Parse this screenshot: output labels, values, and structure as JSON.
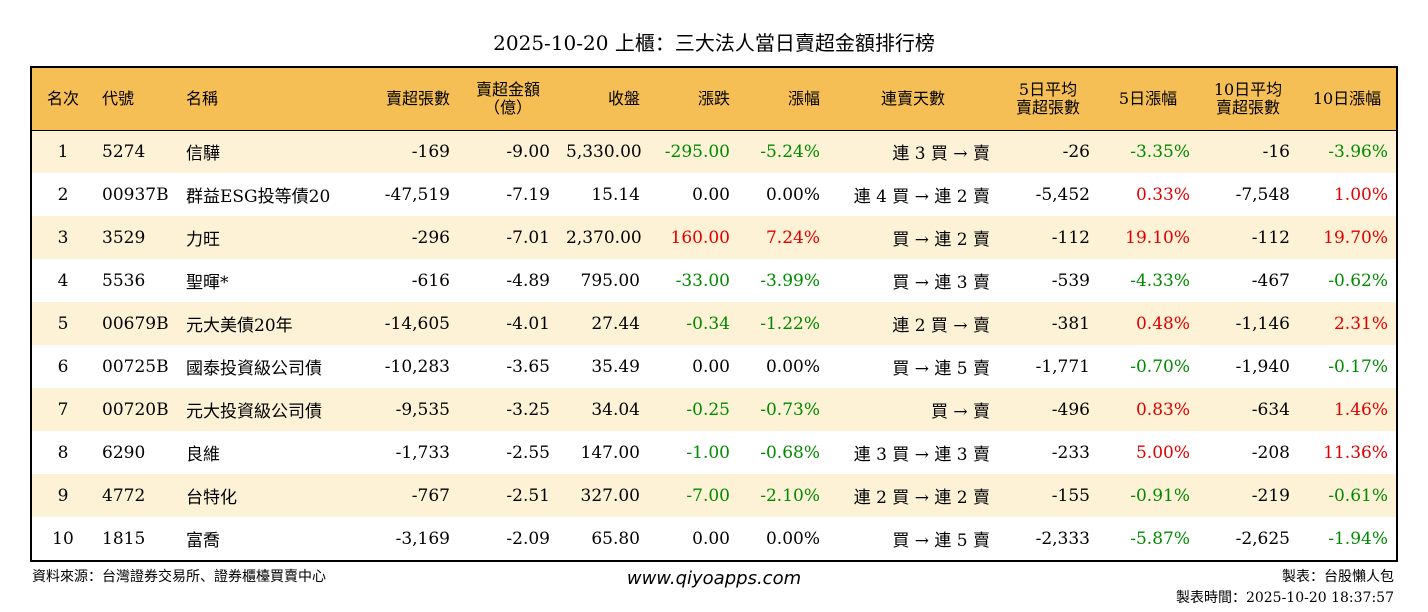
{
  "title": "2025-10-20 上櫃：三大法人當日賣超金額排行榜",
  "headers": [
    {
      "l1": "名次",
      "l2": ""
    },
    {
      "l1": "代號",
      "l2": ""
    },
    {
      "l1": "名稱",
      "l2": ""
    },
    {
      "l1": "賣超張數",
      "l2": ""
    },
    {
      "l1": "賣超金額",
      "l2": "（億）"
    },
    {
      "l1": "收盤",
      "l2": ""
    },
    {
      "l1": "漲跌",
      "l2": ""
    },
    {
      "l1": "漲幅",
      "l2": ""
    },
    {
      "l1": "連賣天數",
      "l2": ""
    },
    {
      "l1": "5日平均",
      "l2": "賣超張數"
    },
    {
      "l1": "5日漲幅",
      "l2": ""
    },
    {
      "l1": "10日平均",
      "l2": "賣超張數"
    },
    {
      "l1": "10日漲幅",
      "l2": ""
    }
  ],
  "colors": {
    "up": "#e10000",
    "down": "#008a00",
    "flat": "#000000",
    "header_bg": "#f5bf55",
    "row_alt_bg": "#fdf1d6"
  },
  "rows": [
    {
      "rank": "1",
      "code": "5274",
      "name": "信驊",
      "sell_lots": "-169",
      "sell_amount": "-9.00",
      "close": "5,330.00",
      "change": "-295.00",
      "change_dir": "down",
      "pct": "-5.24%",
      "pct_dir": "down",
      "streak": "連 3 買 → 賣",
      "avg5": "-26",
      "pct5": "-3.35%",
      "pct5_dir": "down",
      "avg10": "-16",
      "pct10": "-3.96%",
      "pct10_dir": "down"
    },
    {
      "rank": "2",
      "code": "00937B",
      "name": "群益ESG投等債20",
      "sell_lots": "-47,519",
      "sell_amount": "-7.19",
      "close": "15.14",
      "change": "0.00",
      "change_dir": "flat",
      "pct": "0.00%",
      "pct_dir": "flat",
      "streak": "連 4 買 → 連 2 賣",
      "avg5": "-5,452",
      "pct5": "0.33%",
      "pct5_dir": "up",
      "avg10": "-7,548",
      "pct10": "1.00%",
      "pct10_dir": "up"
    },
    {
      "rank": "3",
      "code": "3529",
      "name": "力旺",
      "sell_lots": "-296",
      "sell_amount": "-7.01",
      "close": "2,370.00",
      "change": "160.00",
      "change_dir": "up",
      "pct": "7.24%",
      "pct_dir": "up",
      "streak": "買 → 連 2 賣",
      "avg5": "-112",
      "pct5": "19.10%",
      "pct5_dir": "up",
      "avg10": "-112",
      "pct10": "19.70%",
      "pct10_dir": "up"
    },
    {
      "rank": "4",
      "code": "5536",
      "name": "聖暉*",
      "sell_lots": "-616",
      "sell_amount": "-4.89",
      "close": "795.00",
      "change": "-33.00",
      "change_dir": "down",
      "pct": "-3.99%",
      "pct_dir": "down",
      "streak": "買 → 連 3 賣",
      "avg5": "-539",
      "pct5": "-4.33%",
      "pct5_dir": "down",
      "avg10": "-467",
      "pct10": "-0.62%",
      "pct10_dir": "down"
    },
    {
      "rank": "5",
      "code": "00679B",
      "name": "元大美債20年",
      "sell_lots": "-14,605",
      "sell_amount": "-4.01",
      "close": "27.44",
      "change": "-0.34",
      "change_dir": "down",
      "pct": "-1.22%",
      "pct_dir": "down",
      "streak": "連 2 買 → 賣",
      "avg5": "-381",
      "pct5": "0.48%",
      "pct5_dir": "up",
      "avg10": "-1,146",
      "pct10": "2.31%",
      "pct10_dir": "up"
    },
    {
      "rank": "6",
      "code": "00725B",
      "name": "國泰投資級公司債",
      "sell_lots": "-10,283",
      "sell_amount": "-3.65",
      "close": "35.49",
      "change": "0.00",
      "change_dir": "flat",
      "pct": "0.00%",
      "pct_dir": "flat",
      "streak": "買 → 連 5 賣",
      "avg5": "-1,771",
      "pct5": "-0.70%",
      "pct5_dir": "down",
      "avg10": "-1,940",
      "pct10": "-0.17%",
      "pct10_dir": "down"
    },
    {
      "rank": "7",
      "code": "00720B",
      "name": "元大投資級公司債",
      "sell_lots": "-9,535",
      "sell_amount": "-3.25",
      "close": "34.04",
      "change": "-0.25",
      "change_dir": "down",
      "pct": "-0.73%",
      "pct_dir": "down",
      "streak": "買 → 賣",
      "avg5": "-496",
      "pct5": "0.83%",
      "pct5_dir": "up",
      "avg10": "-634",
      "pct10": "1.46%",
      "pct10_dir": "up"
    },
    {
      "rank": "8",
      "code": "6290",
      "name": "良維",
      "sell_lots": "-1,733",
      "sell_amount": "-2.55",
      "close": "147.00",
      "change": "-1.00",
      "change_dir": "down",
      "pct": "-0.68%",
      "pct_dir": "down",
      "streak": "連 3 買 → 連 3 賣",
      "avg5": "-233",
      "pct5": "5.00%",
      "pct5_dir": "up",
      "avg10": "-208",
      "pct10": "11.36%",
      "pct10_dir": "up"
    },
    {
      "rank": "9",
      "code": "4772",
      "name": "台特化",
      "sell_lots": "-767",
      "sell_amount": "-2.51",
      "close": "327.00",
      "change": "-7.00",
      "change_dir": "down",
      "pct": "-2.10%",
      "pct_dir": "down",
      "streak": "連 2 買 → 連 2 賣",
      "avg5": "-155",
      "pct5": "-0.91%",
      "pct5_dir": "down",
      "avg10": "-219",
      "pct10": "-0.61%",
      "pct10_dir": "down"
    },
    {
      "rank": "10",
      "code": "1815",
      "name": "富喬",
      "sell_lots": "-3,169",
      "sell_amount": "-2.09",
      "close": "65.80",
      "change": "0.00",
      "change_dir": "flat",
      "pct": "0.00%",
      "pct_dir": "flat",
      "streak": "買 → 連 5 賣",
      "avg5": "-2,333",
      "pct5": "-5.87%",
      "pct5_dir": "down",
      "avg10": "-2,625",
      "pct10": "-1.94%",
      "pct10_dir": "down"
    }
  ],
  "footer": {
    "source": "資料來源：台灣證券交易所、證券櫃檯買賣中心",
    "website": "www.qiyoapps.com",
    "maker": "製表：台股懶人包",
    "made_time": "製表時間：2025-10-20 18:37:57"
  }
}
